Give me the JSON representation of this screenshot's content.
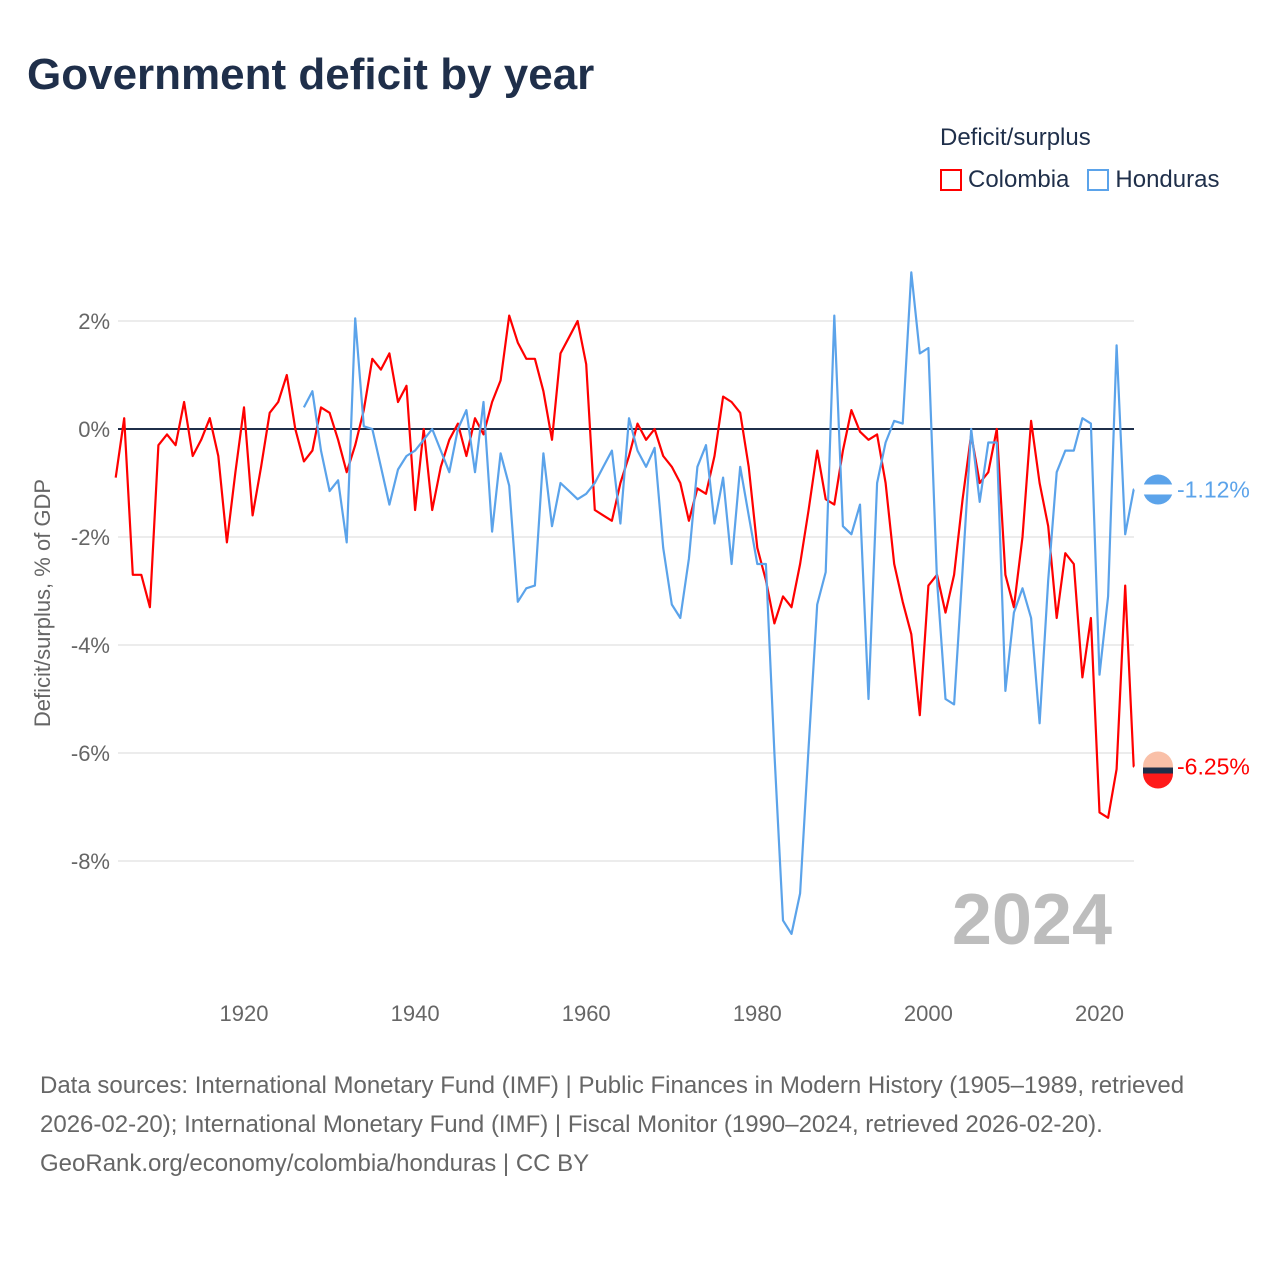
{
  "title": "Government deficit by year",
  "legend": {
    "title": "Deficit/surplus",
    "items": [
      "Colombia",
      "Honduras"
    ]
  },
  "year_label": "2024",
  "footer": {
    "sources": "Data sources: International Monetary Fund (IMF) | Public Finances in Modern History (1905–1989, retrieved 2026-02-20); International Monetary Fund (IMF) | Fiscal Monitor (1990–2024, retrieved 2026-02-20).",
    "credit": "GeoRank.org/economy/colombia/honduras | CC BY"
  },
  "chart_data": {
    "type": "line",
    "title": "Government deficit by year",
    "ylabel": "Deficit/surplus, % of GDP",
    "xlabel": "",
    "xlim": [
      1905,
      2024
    ],
    "ylim": [
      -10,
      3
    ],
    "yticks": [
      2,
      0,
      -2,
      -4,
      -6,
      -8
    ],
    "ytick_labels": [
      "2%",
      "0%",
      "-2%",
      "-4%",
      "-6%",
      "-8%"
    ],
    "xticks": [
      1920,
      1940,
      1960,
      1980,
      2000,
      2020
    ],
    "xtick_labels": [
      "1920",
      "1940",
      "1960",
      "1980",
      "2000",
      "2020"
    ],
    "grid": true,
    "legend_position": "top-right",
    "series": [
      {
        "name": "Colombia",
        "color": "#ff0000",
        "start_year": 1905,
        "end_label": "-6.25%",
        "values": [
          -0.9,
          0.2,
          -2.7,
          -2.7,
          -3.3,
          -0.3,
          -0.1,
          -0.3,
          0.5,
          -0.5,
          -0.2,
          0.2,
          -0.5,
          -2.1,
          -0.8,
          0.4,
          -1.6,
          -0.7,
          0.3,
          0.5,
          1.0,
          0.0,
          -0.6,
          -0.4,
          0.4,
          0.3,
          -0.2,
          -0.8,
          -0.3,
          0.35,
          1.3,
          1.1,
          1.4,
          0.5,
          0.8,
          -1.5,
          0.0,
          -1.5,
          -0.7,
          -0.2,
          0.1,
          -0.5,
          0.2,
          -0.1,
          0.5,
          0.9,
          2.1,
          1.6,
          1.3,
          1.3,
          0.7,
          -0.2,
          1.4,
          1.7,
          2.0,
          1.2,
          -1.5,
          -1.6,
          -1.7,
          -1.0,
          -0.5,
          0.1,
          -0.2,
          0.0,
          -0.5,
          -0.7,
          -1.0,
          -1.7,
          -1.1,
          -1.2,
          -0.5,
          0.6,
          0.5,
          0.3,
          -0.7,
          -2.2,
          -2.8,
          -3.6,
          -3.1,
          -3.3,
          -2.5,
          -1.5,
          -0.4,
          -1.3,
          -1.4,
          -0.4,
          0.35,
          -0.05,
          -0.2,
          -0.1,
          -1.0,
          -2.5,
          -3.2,
          -3.8,
          -5.3,
          -2.9,
          -2.7,
          -3.4,
          -2.7,
          -1.3,
          -0.1,
          -1.0,
          -0.8,
          0.0,
          -2.7,
          -3.3,
          -2.0,
          0.15,
          -1.0,
          -1.8,
          -3.5,
          -2.3,
          -2.5,
          -4.6,
          -3.5,
          -7.1,
          -7.2,
          -6.3,
          -2.9,
          -6.25
        ]
      },
      {
        "name": "Honduras",
        "color": "#5ba3ea",
        "start_year": 1927,
        "end_label": "-1.12%",
        "values": [
          0.4,
          0.7,
          -0.4,
          -1.15,
          -0.95,
          -2.1,
          2.05,
          0.05,
          0.0,
          -0.7,
          -1.4,
          -0.75,
          -0.5,
          -0.4,
          -0.2,
          0.0,
          -0.4,
          -0.8,
          0.0,
          0.35,
          -0.8,
          0.5,
          -1.9,
          -0.45,
          -1.05,
          -3.2,
          -2.95,
          -2.9,
          -0.45,
          -1.8,
          -1.0,
          -1.15,
          -1.3,
          -1.2,
          -1.0,
          -0.7,
          -0.4,
          -1.75,
          0.2,
          -0.4,
          -0.7,
          -0.35,
          -2.2,
          -3.25,
          -3.5,
          -2.4,
          -0.7,
          -0.3,
          -1.75,
          -0.9,
          -2.5,
          -0.7,
          -1.6,
          -2.5,
          -2.5,
          -6.0,
          -9.1,
          -9.35,
          -8.6,
          -5.9,
          -3.25,
          -2.65,
          2.1,
          -1.8,
          -1.95,
          -1.4,
          -5.0,
          -1.0,
          -0.25,
          0.15,
          0.1,
          2.9,
          1.4,
          1.5,
          -2.8,
          -5.0,
          -5.1,
          -2.6,
          0.0,
          -1.35,
          -0.25,
          -0.25,
          -4.85,
          -3.4,
          -2.95,
          -3.5,
          -5.45,
          -2.8,
          -0.8,
          -0.4,
          -0.4,
          0.2,
          0.1,
          -4.55,
          -3.1,
          1.55,
          -1.95,
          -1.12
        ]
      }
    ]
  }
}
